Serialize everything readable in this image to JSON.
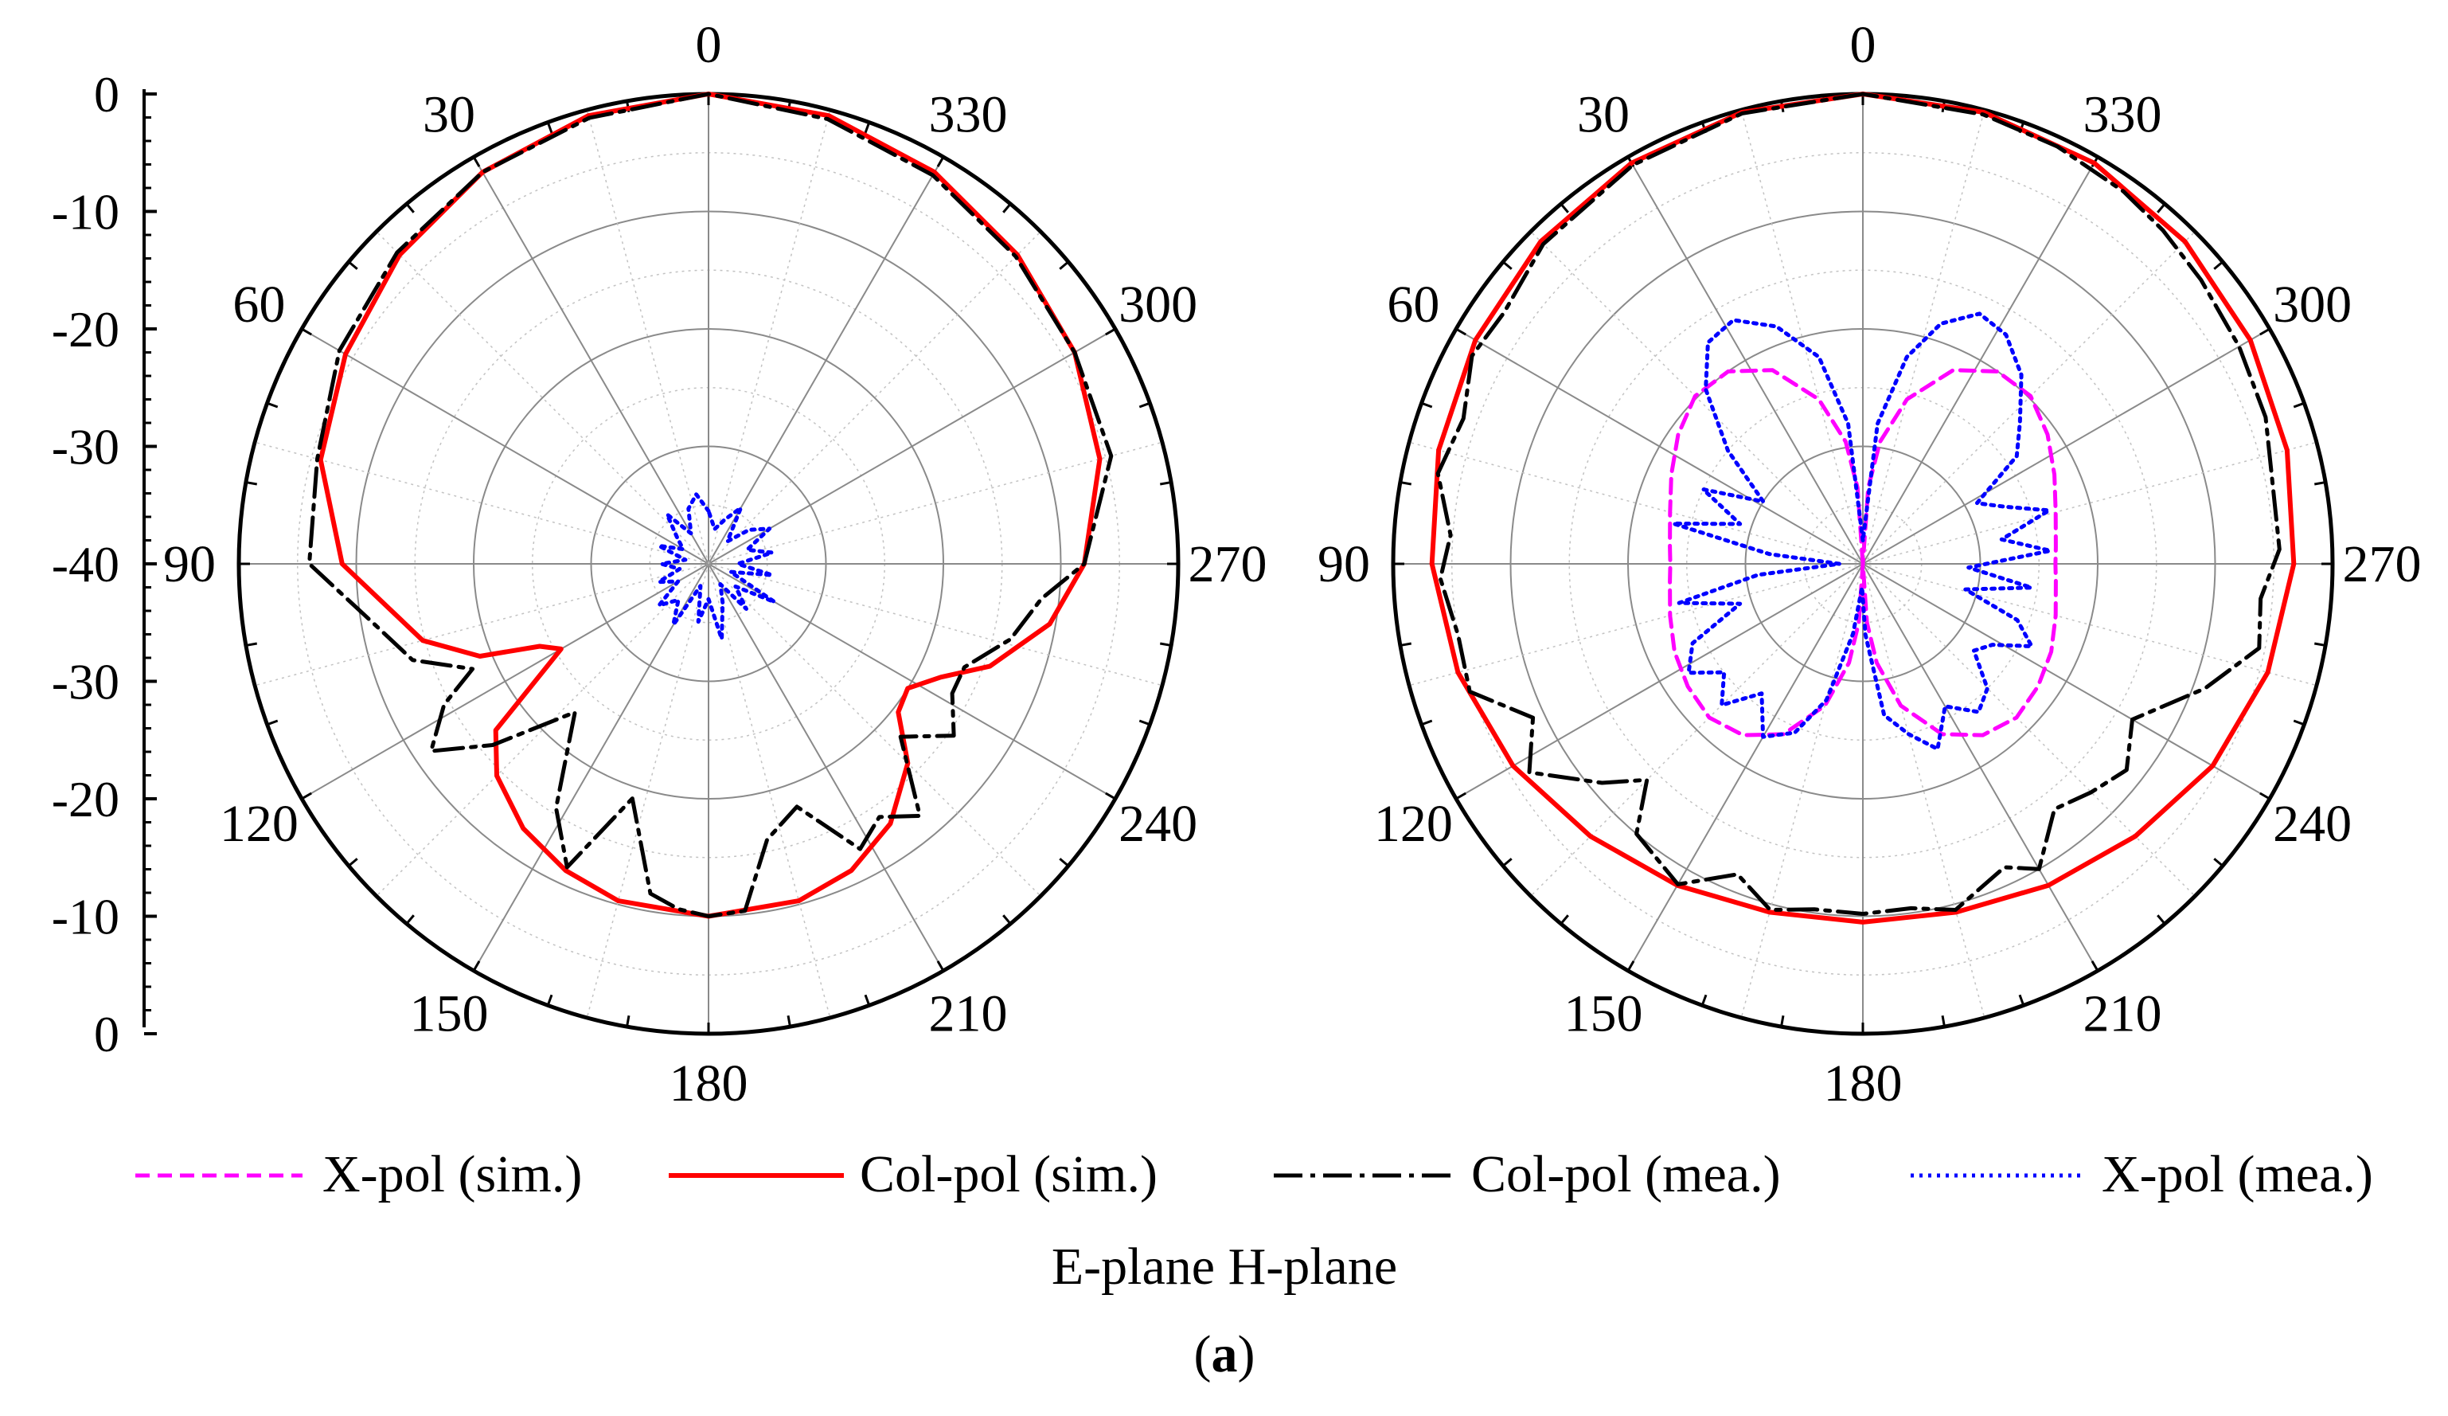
{
  "caption": {
    "planes": "E-plane H-plane",
    "label_open": "(",
    "label_letter": "a",
    "label_close": ")"
  },
  "legend": [
    {
      "label": "X-pol (sim.)",
      "color": "#ff00ff",
      "style": "dashed"
    },
    {
      "label": "Col-pol (sim.)",
      "color": "#ff0000",
      "style": "solid"
    },
    {
      "label": "Col-pol (mea.)",
      "color": "#000000",
      "style": "dashdot"
    },
    {
      "label": "X-pol (mea.)",
      "color": "#0000ff",
      "style": "dotted"
    }
  ],
  "chart_data": [
    {
      "type": "polar",
      "plane": "E-plane",
      "angle_ticks": [
        0,
        30,
        60,
        90,
        120,
        150,
        180,
        210,
        240,
        270,
        300,
        330
      ],
      "angle_direction": "counterclockwise from top",
      "radial_range_db": [
        -40,
        0
      ],
      "radial_axis_ticks": [
        "0",
        "-10",
        "-20",
        "-30",
        "-40",
        "-30",
        "-20",
        "-10",
        "0"
      ],
      "grid": true,
      "series": [
        {
          "name": "Col-pol (sim.)",
          "color": "#ff0000",
          "theta": [
            0,
            15,
            30,
            45,
            60,
            75,
            90,
            105,
            112,
            116,
            120,
            128,
            135,
            145,
            155,
            165,
            180,
            195,
            205,
            215,
            225,
            232,
            238,
            244,
            250,
            260,
            270,
            285,
            300,
            315,
            330,
            345,
            360
          ],
          "gain_db": [
            0,
            -0.5,
            -1.5,
            -2.8,
            -4.3,
            -5.8,
            -8.8,
            -14.8,
            -19,
            -24,
            -25.5,
            -17,
            -14.5,
            -12.5,
            -11.2,
            -10.3,
            -10,
            -10.3,
            -11.2,
            -13,
            -16,
            -19.5,
            -20,
            -18,
            -14.5,
            -10.5,
            -8,
            -5.5,
            -4,
            -2.8,
            -1.5,
            -0.5,
            0
          ]
        },
        {
          "name": "Col-pol (mea.)",
          "color": "#000000",
          "theta": [
            0,
            15,
            30,
            45,
            60,
            75,
            90,
            100,
            108,
            114,
            118,
            124,
            130,
            138,
            148,
            155,
            162,
            170,
            175,
            180,
            186,
            192,
            200,
            208,
            214,
            220,
            228,
            235,
            242,
            248,
            256,
            264,
            270,
            285,
            300,
            315,
            330,
            345,
            360
          ],
          "gain_db": [
            0,
            -0.7,
            -1.5,
            -2.5,
            -3.7,
            -5.5,
            -6,
            -11,
            -13.5,
            -18,
            -14.5,
            -11.5,
            -16,
            -23,
            -15.5,
            -11.5,
            -19,
            -11.5,
            -10.5,
            -10,
            -10.3,
            -16,
            -18,
            -12.5,
            -14,
            -12,
            -18,
            -14.5,
            -16.5,
            -16.5,
            -13.5,
            -11.5,
            -8,
            -4.5,
            -4,
            -3,
            -1.8,
            -0.8,
            0
          ]
        },
        {
          "name": "X-pol (mea.)",
          "color": "#0000ff",
          "theta": [
            0,
            10,
            20,
            30,
            40,
            50,
            60,
            70,
            80,
            90,
            100,
            110,
            120,
            130,
            140,
            150,
            160,
            170,
            180,
            190,
            200,
            210,
            220,
            230,
            240,
            250,
            260,
            270,
            280,
            290,
            300,
            310,
            320,
            330,
            340,
            350,
            360
          ],
          "gain_db": [
            -35.5,
            -34,
            -35,
            -37,
            -34.5,
            -36.5,
            -37.5,
            -35.5,
            -38,
            -36,
            -37.5,
            -35.5,
            -37,
            -34.5,
            -36,
            -34,
            -38,
            -35,
            -37,
            -33.5,
            -36.5,
            -38,
            -35,
            -37,
            -33.5,
            -38,
            -34.5,
            -37.5,
            -34.5,
            -36.5,
            -34,
            -35.5,
            -37.5,
            -34.5,
            -36,
            -37,
            -35.5
          ]
        }
      ]
    },
    {
      "type": "polar",
      "plane": "H-plane",
      "angle_ticks": [
        0,
        30,
        60,
        90,
        120,
        150,
        180,
        210,
        240,
        270,
        300,
        330
      ],
      "angle_direction": "counterclockwise from top",
      "radial_range_db": [
        -40,
        0
      ],
      "grid": true,
      "series": [
        {
          "name": "Col-pol (sim.)",
          "color": "#ff0000",
          "theta": [
            0,
            15,
            30,
            45,
            60,
            75,
            90,
            105,
            120,
            135,
            150,
            165,
            180,
            195,
            210,
            225,
            240,
            255,
            270,
            285,
            300,
            315,
            330,
            345,
            360
          ],
          "gain_db": [
            0,
            -0.2,
            -0.6,
            -1.2,
            -1.9,
            -2.6,
            -3.3,
            -4.3,
            -5.6,
            -7.2,
            -8.4,
            -9.3,
            -9.5,
            -9.3,
            -8.4,
            -7.2,
            -5.6,
            -4.3,
            -3.3,
            -2.6,
            -1.9,
            -1.2,
            -0.6,
            -0.2,
            0
          ]
        },
        {
          "name": "Col-pol (mea.)",
          "color": "#000000",
          "theta": [
            0,
            15,
            30,
            45,
            55,
            62,
            70,
            78,
            86,
            92,
            100,
            108,
            115,
            122,
            130,
            135,
            140,
            150,
            158,
            165,
            172,
            180,
            188,
            195,
            205,
            210,
            218,
            225,
            232,
            240,
            250,
            258,
            265,
            272,
            280,
            290,
            300,
            310,
            318,
            325,
            335,
            345,
            360
          ],
          "gain_db": [
            0,
            -0.3,
            -0.8,
            -1.5,
            -2.7,
            -2.3,
            -3.8,
            -3,
            -4.8,
            -4,
            -5,
            -4.8,
            -9,
            -6.5,
            -11,
            -14,
            -10,
            -8.5,
            -11.5,
            -9.5,
            -10.3,
            -10.2,
            -10.4,
            -9.5,
            -11.5,
            -10,
            -13.5,
            -12.5,
            -11.5,
            -13.5,
            -9,
            -5.5,
            -6,
            -4.5,
            -4.5,
            -3.5,
            -3,
            -2.4,
            -1.8,
            -1.3,
            -0.8,
            -0.4,
            0
          ]
        },
        {
          "name": "X-pol (sim.)",
          "color": "#ff00ff",
          "theta": [
            0,
            4,
            8,
            15,
            25,
            35,
            45,
            55,
            65,
            75,
            85,
            90,
            95,
            105,
            115,
            125,
            135,
            145,
            155,
            165,
            172,
            176,
            180,
            184,
            188,
            195,
            205,
            215,
            225,
            235,
            245,
            255,
            265,
            270,
            275,
            285,
            295,
            305,
            315,
            325,
            335,
            345,
            352,
            356,
            360
          ],
          "gain_db": [
            -40,
            -33.5,
            -29.5,
            -25.5,
            -21.8,
            -20,
            -19.8,
            -20.8,
            -22,
            -23,
            -23.5,
            -23.6,
            -23.5,
            -23,
            -22.3,
            -21.8,
            -21.5,
            -22.2,
            -24,
            -27.5,
            -31.5,
            -35,
            -40,
            -35,
            -31.5,
            -27.5,
            -24,
            -22.2,
            -21.5,
            -21.8,
            -22.3,
            -23,
            -23.5,
            -23.6,
            -23.5,
            -23,
            -22,
            -20.8,
            -19.8,
            -20,
            -21.8,
            -25.5,
            -29.5,
            -33.5,
            -40
          ]
        },
        {
          "name": "X-pol (mea.)",
          "color": "#0000ff",
          "theta": [
            0,
            6,
            12,
            20,
            28,
            35,
            42,
            50,
            58,
            65,
            72,
            78,
            84,
            90,
            96,
            102,
            108,
            115,
            122,
            128,
            135,
            142,
            150,
            158,
            165,
            172,
            178,
            182,
            188,
            195,
            202,
            210,
            218,
            225,
            232,
            238,
            244,
            250,
            256,
            262,
            268,
            274,
            280,
            286,
            292,
            298,
            305,
            312,
            320,
            328,
            335,
            342,
            348,
            354,
            360
          ],
          "gain_db": [
            -38,
            -28,
            -22,
            -18.5,
            -16.5,
            -17,
            -20,
            -25,
            -30,
            -25,
            -29,
            -23.5,
            -32,
            -38,
            -31,
            -24,
            -29,
            -24,
            -22.5,
            -25,
            -23,
            -26,
            -23,
            -24.5,
            -28,
            -34,
            -38,
            -34,
            -27,
            -25,
            -23,
            -26,
            -24,
            -25,
            -28,
            -27,
            -24,
            -26,
            -31,
            -25.5,
            -31,
            -24,
            -28,
            -23.5,
            -27,
            -29,
            -24,
            -22,
            -19,
            -17,
            -16.5,
            -18.5,
            -22,
            -28,
            -38
          ]
        }
      ]
    }
  ]
}
